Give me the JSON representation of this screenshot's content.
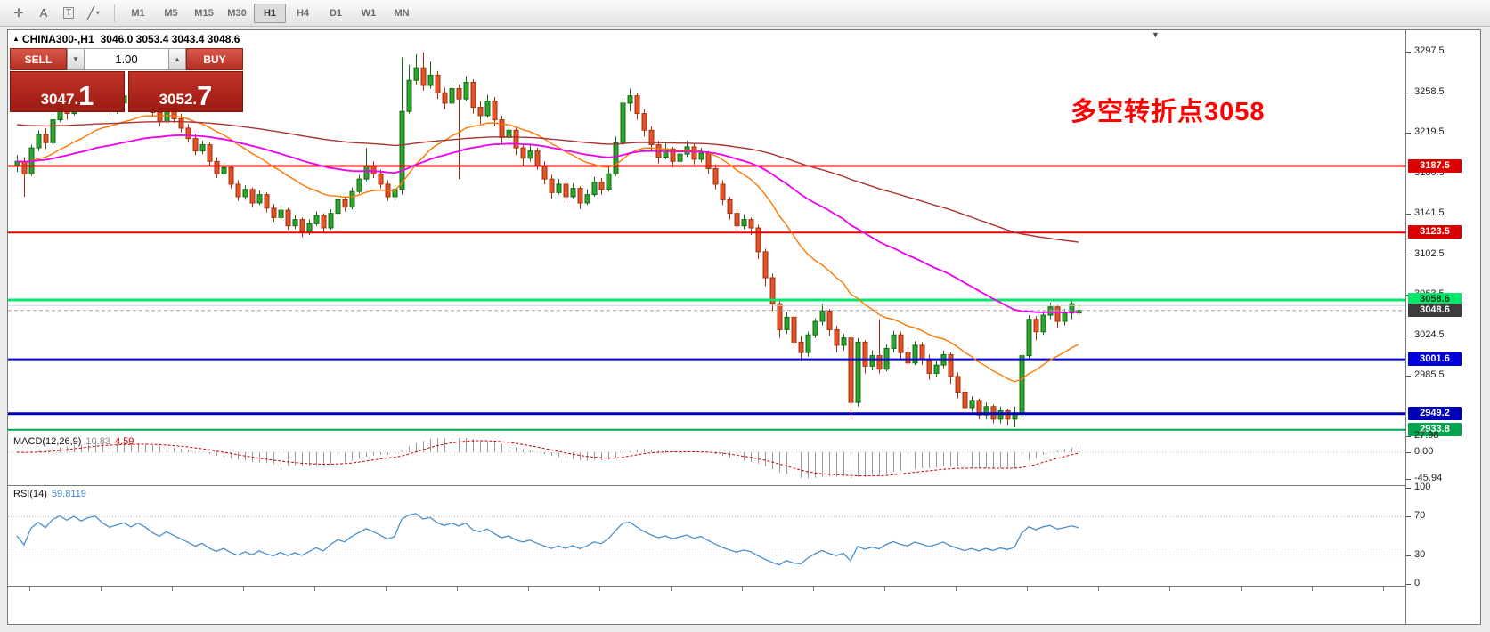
{
  "toolbar": {
    "tools": [
      {
        "name": "crosshair-icon",
        "glyph": "✛"
      },
      {
        "name": "text-label-icon",
        "glyph": "A"
      },
      {
        "name": "text-box-icon",
        "glyph": "T",
        "boxed": true
      },
      {
        "name": "cycle-lines-icon",
        "glyph": "╱",
        "caret": true
      }
    ],
    "timeframes": [
      "M1",
      "M5",
      "M15",
      "M30",
      "H1",
      "H4",
      "D1",
      "W1",
      "MN"
    ],
    "active_timeframe": "H1"
  },
  "chart": {
    "title": "CHINA300-,H1",
    "ohlc_display": "3046.0 3053.4 3043.4 3048.6"
  },
  "trade_panel": {
    "sell_label": "SELL",
    "buy_label": "BUY",
    "volume": "1.00",
    "spin_down": "▼",
    "spin_up": "▲",
    "bid_small": "3047.",
    "bid_big": "1",
    "ask_small": "3052.",
    "ask_big": "7"
  },
  "macd": {
    "label": "MACD(12,26,9)",
    "main_value": "10.83",
    "signal_value": "4.59",
    "axis": [
      {
        "v": 27.98,
        "text": "27.98"
      },
      {
        "v": 0,
        "text": "0.00"
      },
      {
        "v": -45.94,
        "text": "-45.94"
      }
    ]
  },
  "rsi": {
    "label": "RSI(14)",
    "value": "59.8119",
    "axis": [
      {
        "v": 100,
        "text": "100"
      },
      {
        "v": 70,
        "text": "70"
      },
      {
        "v": 30,
        "text": "30"
      },
      {
        "v": 0,
        "text": "0"
      }
    ],
    "levels": [
      70,
      30
    ]
  },
  "chart_data": {
    "type": "candlestick",
    "symbol": "CHINA300-",
    "timeframe": "H1",
    "last_ohlc": {
      "open": 3046.0,
      "high": 3053.4,
      "low": 3043.4,
      "close": 3048.6
    },
    "bid": 3047.1,
    "ask": 3052.7,
    "annotation": {
      "text": "多空转折点3058",
      "color": "#FF0000"
    },
    "price_range": {
      "top": 3313,
      "bottom": 2931
    },
    "y_ticks": [
      3297.5,
      3258.5,
      3219.5,
      3180.5,
      3141.5,
      3102.5,
      3063.5,
      3024.5,
      2985.5,
      2946.5
    ],
    "hlines": [
      {
        "price": 3187.5,
        "color": "#EE0000",
        "w": 2
      },
      {
        "price": 3123.5,
        "color": "#EE0000",
        "w": 2
      },
      {
        "price": 3058.6,
        "color": "#00E86A",
        "w": 3
      },
      {
        "price": 3053.4,
        "color": "#CFCFCF",
        "w": 1
      },
      {
        "price": 3048.6,
        "color": "#A8A8A8",
        "w": 1,
        "dash": "4,3"
      },
      {
        "price": 3001.6,
        "color": "#0000EE",
        "w": 2
      },
      {
        "price": 2949.2,
        "color": "#0000BB",
        "w": 3
      },
      {
        "price": 2933.8,
        "color": "#00A550",
        "w": 2
      }
    ],
    "badges": [
      {
        "price": 3187.5,
        "text": "3187.5",
        "bg": "#DD0000",
        "fg": "#FFFFFF"
      },
      {
        "price": 3123.5,
        "text": "3123.5",
        "bg": "#DD0000",
        "fg": "#FFFFFF"
      },
      {
        "price": 3058.6,
        "text": "3058.6",
        "bg": "#00E86A",
        "fg": "#00331A"
      },
      {
        "price": 3001.6,
        "text": "3001.6",
        "bg": "#0000DD",
        "fg": "#FFFFFF"
      },
      {
        "price": 2949.2,
        "text": "2949.2",
        "bg": "#0000B8",
        "fg": "#FFFFFF"
      },
      {
        "price": 2933.8,
        "text": "2933.8",
        "bg": "#00A550",
        "fg": "#FFFFFF"
      },
      {
        "price": 3048.6,
        "text": "3048.6",
        "bg": "#3C3C3C",
        "fg": "#FFFFFF"
      }
    ],
    "moving_averages": [
      {
        "period": 21,
        "color": "#FF7700",
        "w": 1.4
      },
      {
        "period": 60,
        "color": "#EE00EE",
        "w": 1.8
      },
      {
        "period": 150,
        "color": "#AA3333",
        "w": 1.4
      }
    ],
    "candles": [
      [
        3188,
        3198,
        3182,
        3192
      ],
      [
        3192,
        3196,
        3158,
        3180
      ],
      [
        3180,
        3208,
        3178,
        3205
      ],
      [
        3205,
        3222,
        3202,
        3218
      ],
      [
        3218,
        3224,
        3204,
        3210
      ],
      [
        3210,
        3236,
        3208,
        3232
      ],
      [
        3232,
        3250,
        3230,
        3245
      ],
      [
        3245,
        3252,
        3232,
        3238
      ],
      [
        3238,
        3256,
        3236,
        3252
      ],
      [
        3252,
        3258,
        3240,
        3244
      ],
      [
        3244,
        3260,
        3242,
        3256
      ],
      [
        3256,
        3268,
        3252,
        3262
      ],
      [
        3262,
        3266,
        3246,
        3250
      ],
      [
        3250,
        3254,
        3236,
        3241
      ],
      [
        3241,
        3252,
        3238,
        3248
      ],
      [
        3248,
        3260,
        3244,
        3255
      ],
      [
        3255,
        3259,
        3242,
        3247
      ],
      [
        3247,
        3264,
        3245,
        3259
      ],
      [
        3259,
        3263,
        3247,
        3251
      ],
      [
        3251,
        3255,
        3235,
        3239
      ],
      [
        3239,
        3244,
        3226,
        3230
      ],
      [
        3230,
        3246,
        3228,
        3242
      ],
      [
        3242,
        3245,
        3229,
        3233
      ],
      [
        3233,
        3238,
        3220,
        3224
      ],
      [
        3224,
        3228,
        3210,
        3214
      ],
      [
        3214,
        3218,
        3198,
        3202
      ],
      [
        3202,
        3212,
        3199,
        3208
      ],
      [
        3208,
        3210,
        3188,
        3192
      ],
      [
        3192,
        3196,
        3176,
        3180
      ],
      [
        3180,
        3190,
        3177,
        3186
      ],
      [
        3186,
        3188,
        3166,
        3170
      ],
      [
        3170,
        3174,
        3154,
        3158
      ],
      [
        3158,
        3169,
        3155,
        3165
      ],
      [
        3165,
        3167,
        3148,
        3152
      ],
      [
        3152,
        3164,
        3150,
        3160
      ],
      [
        3160,
        3162,
        3143,
        3147
      ],
      [
        3147,
        3151,
        3134,
        3138
      ],
      [
        3138,
        3149,
        3136,
        3145
      ],
      [
        3145,
        3147,
        3126,
        3130
      ],
      [
        3130,
        3140,
        3127,
        3136
      ],
      [
        3136,
        3138,
        3119,
        3124
      ],
      [
        3124,
        3136,
        3121,
        3132
      ],
      [
        3132,
        3144,
        3130,
        3140
      ],
      [
        3140,
        3142,
        3124,
        3128
      ],
      [
        3128,
        3146,
        3126,
        3142
      ],
      [
        3142,
        3159,
        3140,
        3155
      ],
      [
        3155,
        3158,
        3144,
        3148
      ],
      [
        3148,
        3167,
        3146,
        3163
      ],
      [
        3163,
        3179,
        3161,
        3175
      ],
      [
        3175,
        3205,
        3173,
        3188
      ],
      [
        3188,
        3192,
        3176,
        3180
      ],
      [
        3180,
        3184,
        3166,
        3170
      ],
      [
        3170,
        3174,
        3154,
        3158
      ],
      [
        3158,
        3169,
        3155,
        3165
      ],
      [
        3165,
        3292,
        3160,
        3240
      ],
      [
        3240,
        3285,
        3238,
        3270
      ],
      [
        3270,
        3295,
        3266,
        3282
      ],
      [
        3282,
        3297,
        3260,
        3265
      ],
      [
        3265,
        3288,
        3262,
        3275
      ],
      [
        3275,
        3279,
        3252,
        3258
      ],
      [
        3258,
        3263,
        3242,
        3248
      ],
      [
        3248,
        3270,
        3246,
        3262
      ],
      [
        3262,
        3266,
        3175,
        3252
      ],
      [
        3252,
        3274,
        3250,
        3268
      ],
      [
        3268,
        3271,
        3238,
        3244
      ],
      [
        3244,
        3250,
        3228,
        3236
      ],
      [
        3236,
        3256,
        3234,
        3250
      ],
      [
        3250,
        3254,
        3226,
        3232
      ],
      [
        3232,
        3236,
        3208,
        3215
      ],
      [
        3215,
        3228,
        3212,
        3222
      ],
      [
        3222,
        3225,
        3198,
        3205
      ],
      [
        3205,
        3209,
        3188,
        3195
      ],
      [
        3195,
        3208,
        3192,
        3202
      ],
      [
        3202,
        3205,
        3184,
        3188
      ],
      [
        3188,
        3192,
        3170,
        3175
      ],
      [
        3175,
        3179,
        3156,
        3162
      ],
      [
        3162,
        3175,
        3160,
        3170
      ],
      [
        3170,
        3172,
        3152,
        3158
      ],
      [
        3158,
        3171,
        3156,
        3166
      ],
      [
        3166,
        3168,
        3146,
        3152
      ],
      [
        3152,
        3165,
        3150,
        3160
      ],
      [
        3160,
        3177,
        3158,
        3172
      ],
      [
        3172,
        3176,
        3160,
        3165
      ],
      [
        3165,
        3186,
        3163,
        3180
      ],
      [
        3180,
        3216,
        3178,
        3210
      ],
      [
        3210,
        3253,
        3208,
        3248
      ],
      [
        3248,
        3262,
        3240,
        3255
      ],
      [
        3255,
        3258,
        3232,
        3238
      ],
      [
        3238,
        3242,
        3216,
        3222
      ],
      [
        3222,
        3226,
        3202,
        3208
      ],
      [
        3208,
        3212,
        3190,
        3196
      ],
      [
        3196,
        3210,
        3194,
        3204
      ],
      [
        3204,
        3206,
        3186,
        3192
      ],
      [
        3192,
        3203,
        3189,
        3199
      ],
      [
        3199,
        3212,
        3196,
        3206
      ],
      [
        3206,
        3209,
        3189,
        3194
      ],
      [
        3194,
        3205,
        3191,
        3200
      ],
      [
        3200,
        3202,
        3180,
        3185
      ],
      [
        3185,
        3189,
        3165,
        3170
      ],
      [
        3170,
        3174,
        3150,
        3155
      ],
      [
        3155,
        3158,
        3136,
        3142
      ],
      [
        3142,
        3146,
        3124,
        3130
      ],
      [
        3130,
        3141,
        3127,
        3136
      ],
      [
        3136,
        3138,
        3121,
        3128
      ],
      [
        3128,
        3131,
        3098,
        3105
      ],
      [
        3105,
        3108,
        3072,
        3080
      ],
      [
        3080,
        3084,
        3048,
        3055
      ],
      [
        3055,
        3058,
        3022,
        3030
      ],
      [
        3030,
        3047,
        3026,
        3042
      ],
      [
        3042,
        3044,
        3012,
        3018
      ],
      [
        3018,
        3024,
        3000,
        3008
      ],
      [
        3008,
        3028,
        3004,
        3025
      ],
      [
        3025,
        3041,
        3022,
        3038
      ],
      [
        3038,
        3055,
        3034,
        3048
      ],
      [
        3048,
        3050,
        3024,
        3030
      ],
      [
        3030,
        3034,
        3008,
        3015
      ],
      [
        3015,
        3026,
        3010,
        3022
      ],
      [
        3022,
        3024,
        2944,
        2960
      ],
      [
        2960,
        3022,
        2956,
        3018
      ],
      [
        3018,
        3020,
        2988,
        2995
      ],
      [
        2995,
        3010,
        2991,
        3005
      ],
      [
        3005,
        3040,
        2988,
        2992
      ],
      [
        2992,
        3016,
        2990,
        3012
      ],
      [
        3012,
        3029,
        3008,
        3025
      ],
      [
        3025,
        3028,
        3002,
        3008
      ],
      [
        3008,
        3012,
        2992,
        2998
      ],
      [
        2998,
        3019,
        2996,
        3015
      ],
      [
        3015,
        3018,
        2996,
        3002
      ],
      [
        3002,
        3006,
        2982,
        2988
      ],
      [
        2988,
        3000,
        2984,
        2996
      ],
      [
        2996,
        3010,
        2993,
        3006
      ],
      [
        3006,
        3008,
        2978,
        2985
      ],
      [
        2985,
        2989,
        2964,
        2970
      ],
      [
        2970,
        2974,
        2950,
        2955
      ],
      [
        2955,
        2966,
        2951,
        2962
      ],
      [
        2962,
        2964,
        2944,
        2948
      ],
      [
        2948,
        2960,
        2944,
        2956
      ],
      [
        2956,
        2958,
        2940,
        2944
      ],
      [
        2944,
        2956,
        2940,
        2952
      ],
      [
        2952,
        2954,
        2938,
        2944
      ],
      [
        2944,
        2956,
        2936,
        2950
      ],
      [
        2950,
        3010,
        2946,
        3005
      ],
      [
        3005,
        3044,
        3002,
        3040
      ],
      [
        3040,
        3043,
        3020,
        3028
      ],
      [
        3028,
        3048,
        3025,
        3044
      ],
      [
        3044,
        3056,
        3040,
        3052
      ],
      [
        3052,
        3054,
        3032,
        3038
      ],
      [
        3038,
        3050,
        3034,
        3046
      ],
      [
        3046,
        3058,
        3040,
        3055
      ],
      [
        3046.0,
        3053.4,
        3043.4,
        3048.6
      ]
    ],
    "colors": {
      "bull_fill": "#2FA32F",
      "bull_stroke": "#156815",
      "bear_fill": "#E2532B",
      "bear_stroke": "#A1320F",
      "macd_histogram": "#9A9A9A",
      "macd_signal": "#D00000",
      "rsi_line": "#4A8FD0"
    }
  }
}
